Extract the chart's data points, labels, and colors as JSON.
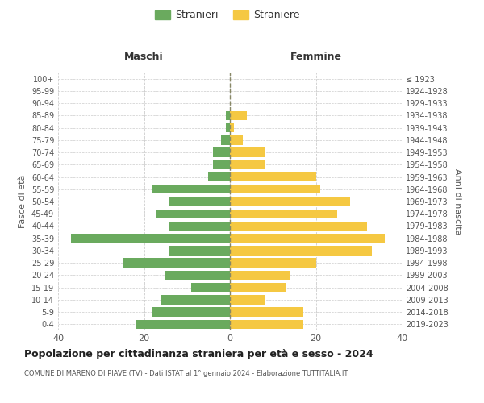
{
  "age_groups": [
    "0-4",
    "5-9",
    "10-14",
    "15-19",
    "20-24",
    "25-29",
    "30-34",
    "35-39",
    "40-44",
    "45-49",
    "50-54",
    "55-59",
    "60-64",
    "65-69",
    "70-74",
    "75-79",
    "80-84",
    "85-89",
    "90-94",
    "95-99",
    "100+"
  ],
  "birth_years": [
    "2019-2023",
    "2014-2018",
    "2009-2013",
    "2004-2008",
    "1999-2003",
    "1994-1998",
    "1989-1993",
    "1984-1988",
    "1979-1983",
    "1974-1978",
    "1969-1973",
    "1964-1968",
    "1959-1963",
    "1954-1958",
    "1949-1953",
    "1944-1948",
    "1939-1943",
    "1934-1938",
    "1929-1933",
    "1924-1928",
    "≤ 1923"
  ],
  "males": [
    22,
    18,
    16,
    9,
    15,
    25,
    14,
    37,
    14,
    17,
    14,
    18,
    5,
    4,
    4,
    2,
    1,
    1,
    0,
    0,
    0
  ],
  "females": [
    17,
    17,
    8,
    13,
    14,
    20,
    33,
    36,
    32,
    25,
    28,
    21,
    20,
    8,
    8,
    3,
    1,
    4,
    0,
    0,
    0
  ],
  "male_color": "#6aaa5e",
  "female_color": "#f5c842",
  "bar_height": 0.75,
  "xlim": 40,
  "title": "Popolazione per cittadinanza straniera per età e sesso - 2024",
  "subtitle": "COMUNE DI MARENO DI PIAVE (TV) - Dati ISTAT al 1° gennaio 2024 - Elaborazione TUTTITALIA.IT",
  "ylabel_left": "Fasce di età",
  "ylabel_right": "Anni di nascita",
  "xlabel_left": "Maschi",
  "xlabel_right": "Femmine",
  "legend_stranieri": "Stranieri",
  "legend_straniere": "Straniere",
  "background_color": "#ffffff",
  "grid_color": "#cccccc",
  "text_color": "#555555"
}
